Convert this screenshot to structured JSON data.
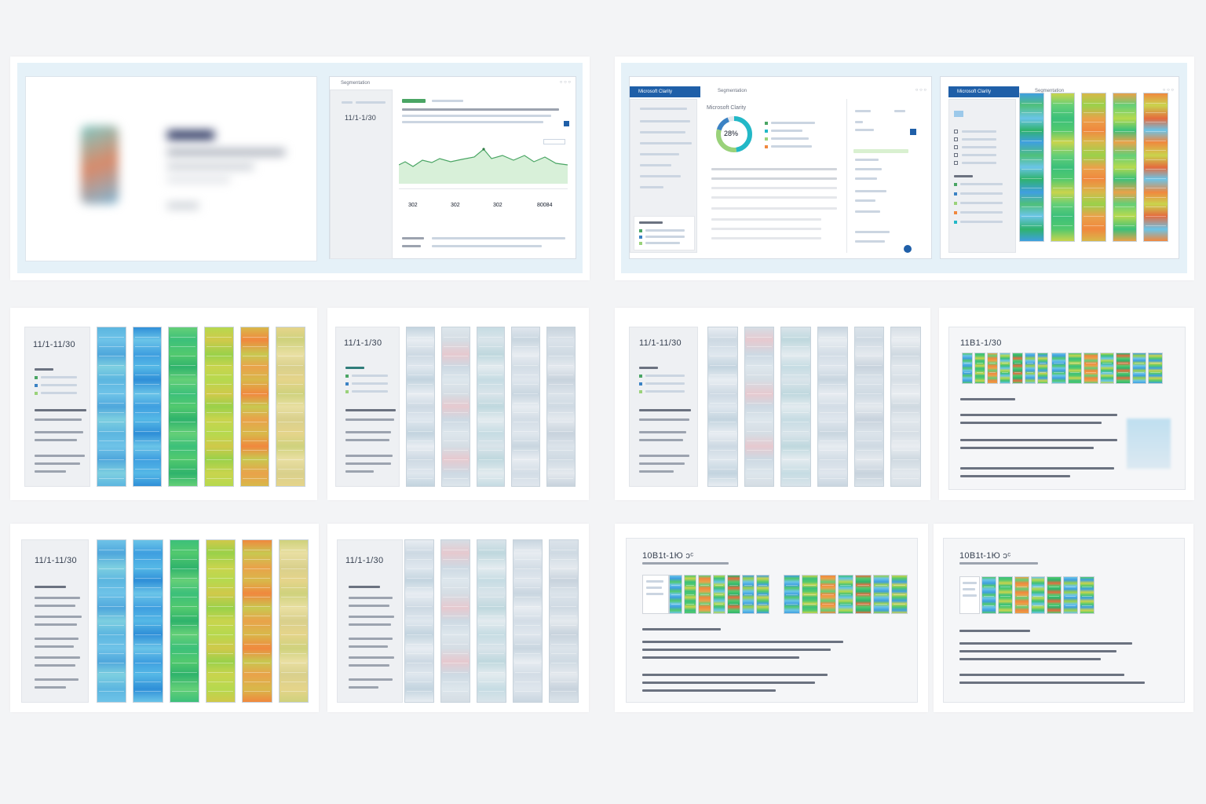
{
  "panel1": {
    "window_title": "Segmentation",
    "date_range": "11/1-1/30",
    "stats": [
      "302",
      "302",
      "302",
      "80084"
    ]
  },
  "panel2": {
    "brand": "Microsoft Clarity",
    "window_title": "Segmentation",
    "gauge_value": "28%",
    "section_title": "Microsoft Clarity"
  },
  "panel3": {
    "brand": "Microsoft Clarity",
    "window_title": "Segmentation"
  },
  "tiles": [
    {
      "date_range": "11/1-11/30"
    },
    {
      "date_range": "11/1-1/30"
    },
    {
      "date_range": "11/1-11/30"
    },
    {
      "date_range": "11B1-1/30"
    },
    {
      "date_range": "11/1-11/30"
    },
    {
      "date_range": "11/1-1/30"
    },
    {
      "date_range": "10B1t-1Ю ᴐᶜ"
    },
    {
      "date_range": "10B1t-1Ю ᴐᶜ"
    }
  ],
  "colors": {
    "frame": "#e5f1f8",
    "header_blue": "#1f5fa8",
    "accent_green": "#9ad27a"
  }
}
